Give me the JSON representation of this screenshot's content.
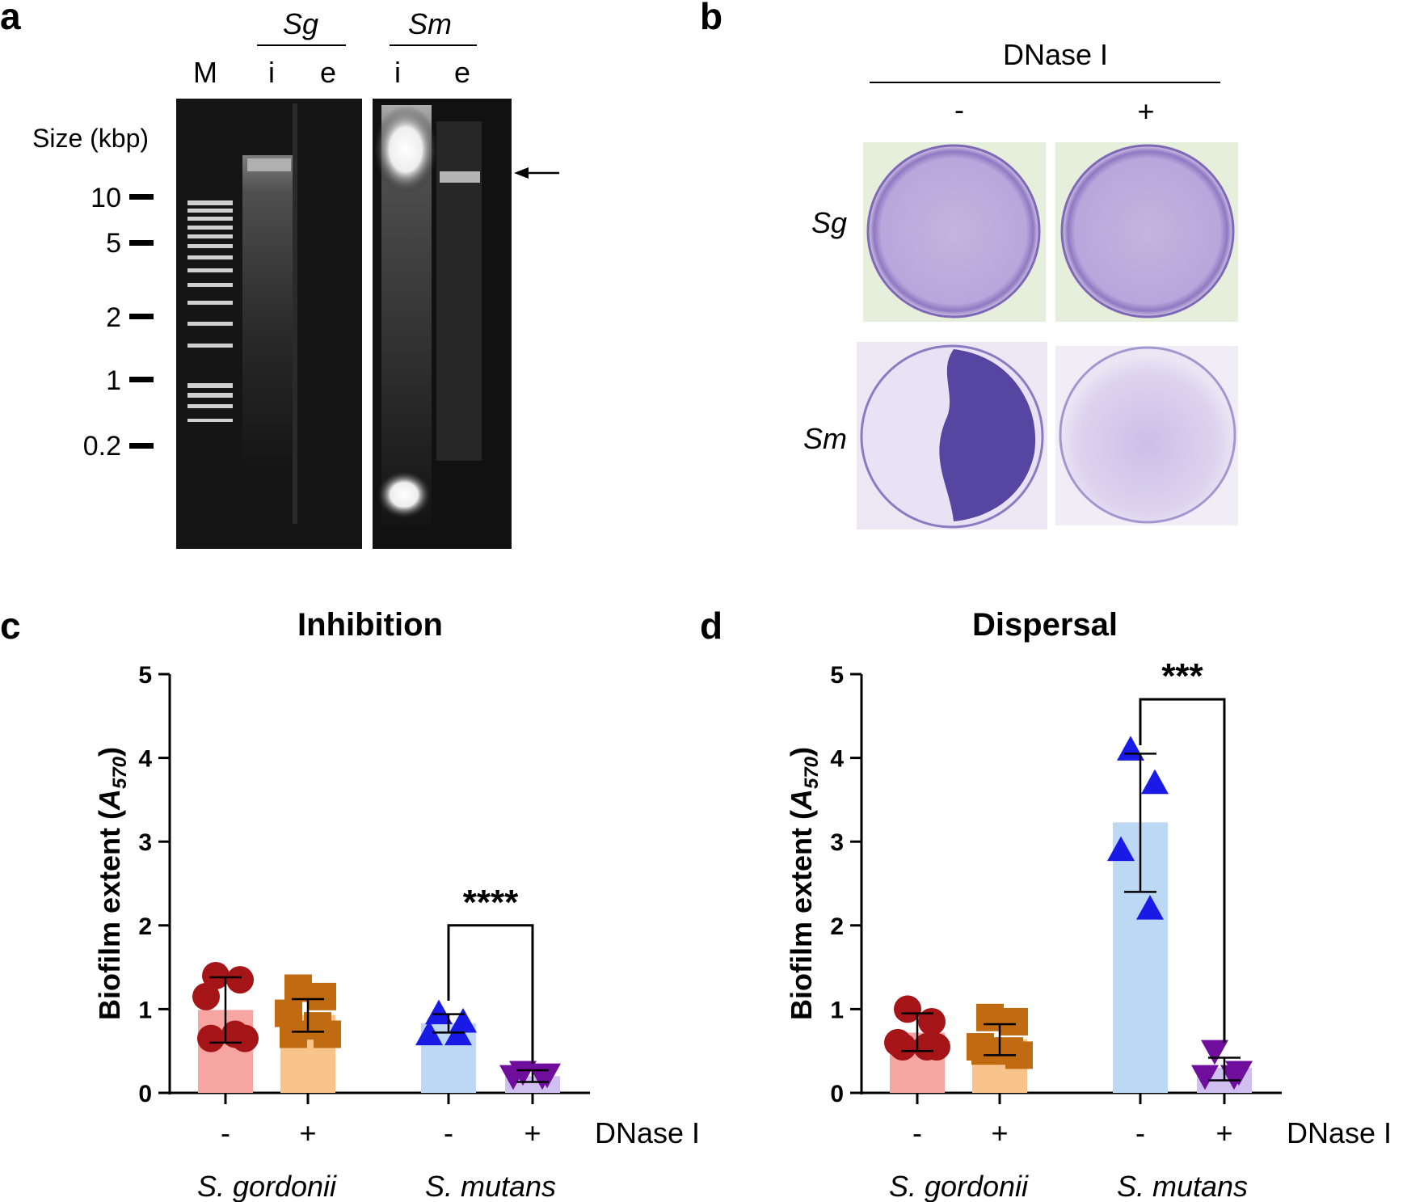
{
  "panel_a": {
    "letter": "a",
    "lane_m": "M",
    "group_sg": "Sg",
    "group_sm": "Sm",
    "lane_i": "i",
    "lane_e": "e",
    "size_label": "Size (kbp)",
    "ladder_marks": [
      "10",
      "5",
      "2",
      "1",
      "0.2"
    ]
  },
  "panel_b": {
    "letter": "b",
    "header": "DNase I",
    "minus": "-",
    "plus": "+",
    "row_sg": "Sg",
    "row_sm": "Sm"
  },
  "chart_data": [
    {
      "type": "bar",
      "panel": "c",
      "title": "Inhibition",
      "ylabel": "Biofilm extent (A570)",
      "ylabel_main": "Biofilm extent (",
      "ylabel_var": "A",
      "ylabel_sub": "570",
      "ylabel_close": ")",
      "ylim": [
        0,
        5
      ],
      "yticks": [
        "0",
        "1",
        "2",
        "3",
        "4",
        "5"
      ],
      "categories": [
        "-",
        "+",
        "-",
        "+"
      ],
      "dnase_label": "DNase I",
      "groups": [
        "S. gordonii",
        "S. mutans"
      ],
      "values": [
        0.99,
        0.93,
        0.83,
        0.2
      ],
      "error": [
        [
          0.6,
          1.38
        ],
        [
          0.73,
          1.12
        ],
        [
          0.72,
          0.94
        ],
        [
          0.13,
          0.27
        ]
      ],
      "points": [
        [
          1.4,
          1.35,
          1.15,
          0.7,
          0.65,
          0.65
        ],
        [
          1.25,
          1.15,
          0.95,
          0.8,
          0.7,
          0.7
        ],
        [
          0.95,
          0.85,
          0.7,
          0.7
        ],
        [
          0.25,
          0.22,
          0.2,
          0.2
        ]
      ],
      "colors": [
        "#f6a5a3",
        "#f9c48b",
        "#bcd8f5",
        "#cfc0ef"
      ],
      "marker_colors": [
        "#a51518",
        "#c06a12",
        "#1a1ae6",
        "#6f0e9c"
      ],
      "markers": [
        "circle",
        "square",
        "triangle-up",
        "triangle-down"
      ],
      "significance": "****"
    },
    {
      "type": "bar",
      "panel": "d",
      "title": "Dispersal",
      "ylabel": "Biofilm extent (A570)",
      "ylabel_main": "Biofilm extent (",
      "ylabel_var": "A",
      "ylabel_sub": "570",
      "ylabel_close": ")",
      "ylim": [
        0,
        5
      ],
      "yticks": [
        "0",
        "1",
        "2",
        "3",
        "4",
        "5"
      ],
      "categories": [
        "-",
        "+",
        "-",
        "+"
      ],
      "dnase_label": "DNase I",
      "groups": [
        "S. gordonii",
        "S. mutans"
      ],
      "values": [
        0.72,
        0.64,
        3.23,
        0.3
      ],
      "error": [
        [
          0.5,
          0.95
        ],
        [
          0.45,
          0.82
        ],
        [
          2.4,
          4.05
        ],
        [
          0.15,
          0.42
        ]
      ],
      "points": [
        [
          1.0,
          0.85,
          0.6,
          0.55,
          0.55,
          0.55
        ],
        [
          0.9,
          0.85,
          0.55,
          0.5,
          0.5,
          0.45
        ],
        [
          4.1,
          3.7,
          2.9,
          2.2
        ],
        [
          0.5,
          0.25,
          0.2,
          0.2
        ]
      ],
      "colors": [
        "#f6a5a3",
        "#f9c48b",
        "#bcd8f5",
        "#cfc0ef"
      ],
      "marker_colors": [
        "#a51518",
        "#c06a12",
        "#1a1ae6",
        "#6f0e9c"
      ],
      "markers": [
        "circle",
        "square",
        "triangle-up",
        "triangle-down"
      ],
      "significance": "***"
    }
  ]
}
